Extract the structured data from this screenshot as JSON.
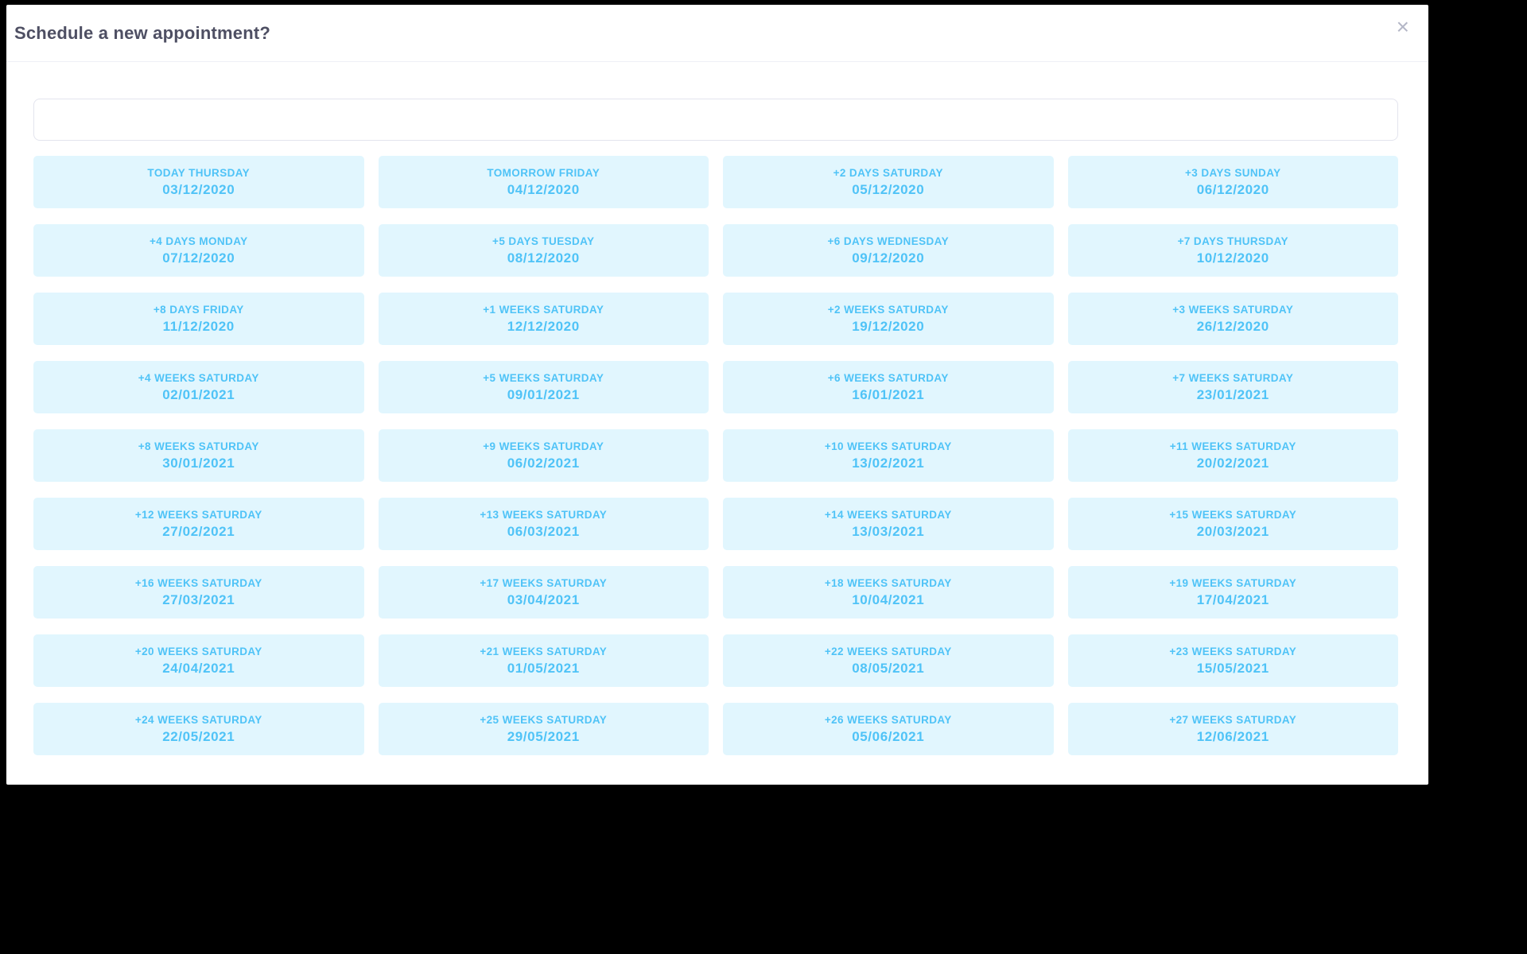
{
  "dialog": {
    "title": "Schedule a new appointment?",
    "close_glyph": "×"
  },
  "search": {
    "value": "",
    "placeholder": ""
  },
  "colors": {
    "accent": "#4fc3f7",
    "slot_bg": "#e1f6fe",
    "title_text": "#4e4f63",
    "backdrop": "#000000"
  },
  "slots": [
    {
      "label": "TODAY THURSDAY",
      "date": "03/12/2020"
    },
    {
      "label": "TOMORROW FRIDAY",
      "date": "04/12/2020"
    },
    {
      "label": "+2 DAYS SATURDAY",
      "date": "05/12/2020"
    },
    {
      "label": "+3 DAYS SUNDAY",
      "date": "06/12/2020"
    },
    {
      "label": "+4 DAYS MONDAY",
      "date": "07/12/2020"
    },
    {
      "label": "+5 DAYS TUESDAY",
      "date": "08/12/2020"
    },
    {
      "label": "+6 DAYS WEDNESDAY",
      "date": "09/12/2020"
    },
    {
      "label": "+7 DAYS THURSDAY",
      "date": "10/12/2020"
    },
    {
      "label": "+8 DAYS FRIDAY",
      "date": "11/12/2020"
    },
    {
      "label": "+1 WEEKS SATURDAY",
      "date": "12/12/2020"
    },
    {
      "label": "+2 WEEKS SATURDAY",
      "date": "19/12/2020"
    },
    {
      "label": "+3 WEEKS SATURDAY",
      "date": "26/12/2020"
    },
    {
      "label": "+4 WEEKS SATURDAY",
      "date": "02/01/2021"
    },
    {
      "label": "+5 WEEKS SATURDAY",
      "date": "09/01/2021"
    },
    {
      "label": "+6 WEEKS SATURDAY",
      "date": "16/01/2021"
    },
    {
      "label": "+7 WEEKS SATURDAY",
      "date": "23/01/2021"
    },
    {
      "label": "+8 WEEKS SATURDAY",
      "date": "30/01/2021"
    },
    {
      "label": "+9 WEEKS SATURDAY",
      "date": "06/02/2021"
    },
    {
      "label": "+10 WEEKS SATURDAY",
      "date": "13/02/2021"
    },
    {
      "label": "+11 WEEKS SATURDAY",
      "date": "20/02/2021"
    },
    {
      "label": "+12 WEEKS SATURDAY",
      "date": "27/02/2021"
    },
    {
      "label": "+13 WEEKS SATURDAY",
      "date": "06/03/2021"
    },
    {
      "label": "+14 WEEKS SATURDAY",
      "date": "13/03/2021"
    },
    {
      "label": "+15 WEEKS SATURDAY",
      "date": "20/03/2021"
    },
    {
      "label": "+16 WEEKS SATURDAY",
      "date": "27/03/2021"
    },
    {
      "label": "+17 WEEKS SATURDAY",
      "date": "03/04/2021"
    },
    {
      "label": "+18 WEEKS SATURDAY",
      "date": "10/04/2021"
    },
    {
      "label": "+19 WEEKS SATURDAY",
      "date": "17/04/2021"
    },
    {
      "label": "+20 WEEKS SATURDAY",
      "date": "24/04/2021"
    },
    {
      "label": "+21 WEEKS SATURDAY",
      "date": "01/05/2021"
    },
    {
      "label": "+22 WEEKS SATURDAY",
      "date": "08/05/2021"
    },
    {
      "label": "+23 WEEKS SATURDAY",
      "date": "15/05/2021"
    },
    {
      "label": "+24 WEEKS SATURDAY",
      "date": "22/05/2021"
    },
    {
      "label": "+25 WEEKS SATURDAY",
      "date": "29/05/2021"
    },
    {
      "label": "+26 WEEKS SATURDAY",
      "date": "05/06/2021"
    },
    {
      "label": "+27 WEEKS SATURDAY",
      "date": "12/06/2021"
    }
  ]
}
